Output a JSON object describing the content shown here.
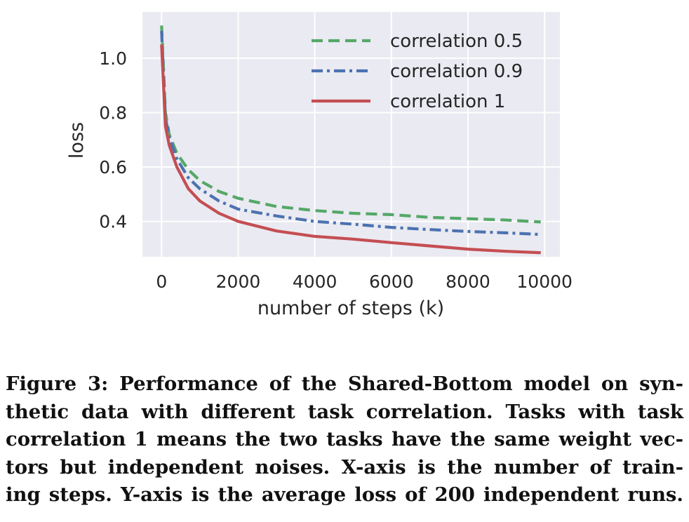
{
  "chart_data": {
    "type": "line",
    "title": "",
    "xlabel": "number of steps (k)",
    "ylabel": "loss",
    "xlim": [
      -500,
      10400
    ],
    "ylim": [
      0.27,
      1.17
    ],
    "x_ticks": [
      0,
      2000,
      4000,
      6000,
      8000,
      10000
    ],
    "x_tick_labels": [
      "0",
      "2000",
      "4000",
      "6000",
      "8000",
      "10000"
    ],
    "y_ticks": [
      0.4,
      0.6,
      0.8,
      1.0
    ],
    "y_tick_labels": [
      "0.4",
      "0.6",
      "0.8",
      "1.0"
    ],
    "grid": true,
    "legend_position": "top-right",
    "background_color": "#eaeaf2",
    "series": [
      {
        "name": "correlation 0.5",
        "color": "#55a868",
        "dash": "dashed",
        "x": [
          0,
          100,
          200,
          400,
          700,
          1000,
          1500,
          2000,
          3000,
          4000,
          5000,
          6000,
          7000,
          8000,
          9000,
          9900
        ],
        "y": [
          1.12,
          0.8,
          0.72,
          0.65,
          0.59,
          0.55,
          0.51,
          0.485,
          0.455,
          0.44,
          0.43,
          0.425,
          0.415,
          0.41,
          0.405,
          0.398
        ]
      },
      {
        "name": "correlation 0.9",
        "color": "#4c72b0",
        "dash": "dashdot",
        "x": [
          0,
          100,
          200,
          400,
          700,
          1000,
          1500,
          2000,
          3000,
          4000,
          5000,
          6000,
          7000,
          8000,
          9000,
          9900
        ],
        "y": [
          1.1,
          0.78,
          0.71,
          0.63,
          0.56,
          0.52,
          0.475,
          0.445,
          0.42,
          0.4,
          0.39,
          0.378,
          0.37,
          0.363,
          0.358,
          0.352
        ]
      },
      {
        "name": "correlation 1",
        "color": "#c44e52",
        "dash": "solid",
        "x": [
          0,
          100,
          200,
          400,
          700,
          1000,
          1500,
          2000,
          3000,
          4000,
          5000,
          6000,
          7000,
          8000,
          9000,
          9900
        ],
        "y": [
          1.05,
          0.75,
          0.68,
          0.6,
          0.52,
          0.475,
          0.43,
          0.4,
          0.365,
          0.345,
          0.335,
          0.322,
          0.31,
          0.298,
          0.29,
          0.285
        ]
      }
    ]
  },
  "caption": {
    "lines": [
      "Figure 3: Performance of the Shared-Bottom model on syn-",
      "thetic data with different task correlation. Tasks with task",
      "correlation 1 means the two tasks have the same weight vec-",
      "tors but independent noises. X-axis is the number of train-",
      "ing steps. Y-axis is the average loss of 200 independent runs."
    ]
  }
}
